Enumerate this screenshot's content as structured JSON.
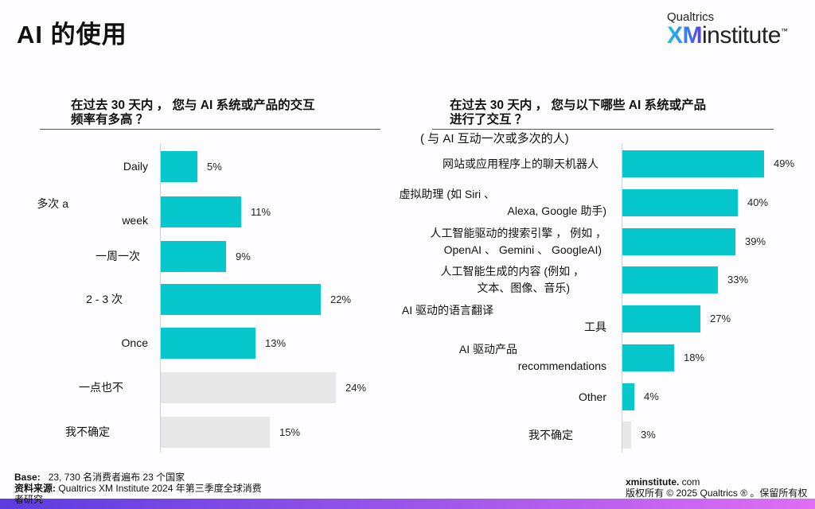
{
  "page": {
    "title": "AI 的使用"
  },
  "logo": {
    "top": "Qualtrics",
    "xm": "XM",
    "institute": "institute",
    "tm": "™"
  },
  "colors": {
    "bar_primary": "#06c7cc",
    "bar_neutral": "#e7e7e7",
    "band_start": "#5b3ce0",
    "band_end": "#e06df5"
  },
  "left_chart": {
    "question_line1": "在过去 30 天内 ， 您与 AI 系统或产品的交互",
    "question_line2": "频率有多高 ？"
  },
  "right_chart": {
    "question_line1": "在过去 30 天内 ， 您与以下哪些 AI 系统或产品",
    "question_line2": "进行了交互 ？",
    "subtitle": "( 与 AI 互动一次或多次的人)"
  },
  "chart_data": [
    {
      "type": "bar",
      "orientation": "horizontal",
      "title": "在过去 30 天内 ， 您与 AI 系统或产品的交互频率有多高 ？",
      "categories": [
        "Daily",
        "多次 a week",
        "一周一次",
        "2 - 3 次",
        "Once",
        "一点也不",
        "我不确定"
      ],
      "category_lines": [
        [
          "Daily"
        ],
        [
          "多次 a",
          "week"
        ],
        [
          "一周一次"
        ],
        [
          "2 - 3 次"
        ],
        [
          "Once"
        ],
        [
          "一点也不"
        ],
        [
          "我不确定"
        ]
      ],
      "values": [
        5,
        11,
        9,
        22,
        13,
        24,
        15
      ],
      "labels": [
        "5%",
        "11%",
        "9%",
        "22%",
        "13%",
        "24%",
        "15%"
      ],
      "highlight": [
        true,
        true,
        true,
        true,
        true,
        false,
        false
      ],
      "xlabel": "",
      "ylabel": "",
      "grid": false,
      "legend": null
    },
    {
      "type": "bar",
      "orientation": "horizontal",
      "title": "在过去 30 天内 ， 您与以下哪些 AI 系统或产品进行了交互 ？",
      "subtitle": "( 与 AI 互动一次或多次的人)",
      "categories": [
        "网站或应用程序上的聊天机器人",
        "虚拟助理 (如 Siri 、 Alexa, Google 助手)",
        "人工智能驱动的搜索引擎 ， 例如 ， OpenAI 、 Gemini 、 GoogleAI)",
        "人工智能生成的内容 (例如 ， 文本、图像、音乐)",
        "AI 驱动的语言翻译 工具",
        "AI 驱动产品 recommendations",
        "Other",
        "我不确定"
      ],
      "category_lines": [
        [
          "网站或应用程序上的聊天机器人"
        ],
        [
          "虚拟助理 (如 Siri 、",
          "Alexa, Google 助手)"
        ],
        [
          "人工智能驱动的搜索引擎 ， 例如 ，",
          "OpenAI 、 Gemini 、 GoogleAI)"
        ],
        [
          "人工智能生成的内容 (例如 ，",
          "文本、图像、音乐)"
        ],
        [
          "AI 驱动的语言翻译",
          "工具"
        ],
        [
          "AI 驱动产品",
          "recommendations"
        ],
        [
          "Other"
        ],
        [
          "我不确定"
        ]
      ],
      "values": [
        49,
        40,
        39,
        33,
        27,
        18,
        4,
        3
      ],
      "labels": [
        "49%",
        "40%",
        "39%",
        "33%",
        "27%",
        "18%",
        "4%",
        "3%"
      ],
      "highlight": [
        true,
        true,
        true,
        true,
        true,
        true,
        true,
        false
      ],
      "xlabel": "",
      "ylabel": "",
      "grid": false,
      "legend": null
    }
  ],
  "footer": {
    "base_label": "Base:",
    "base_text": "23, 730 名消费者遍布 23 个国家",
    "source_label": "资料来源:",
    "source_text": "Qualtrics XM Institute 2024 年第三季度全球消费",
    "source_text_cont": "者研究",
    "site_bold": "xminstitute.",
    "site_rest": " com",
    "copyright": "版权所有 © 2025 Qualtrics ® 。保留所有权"
  }
}
